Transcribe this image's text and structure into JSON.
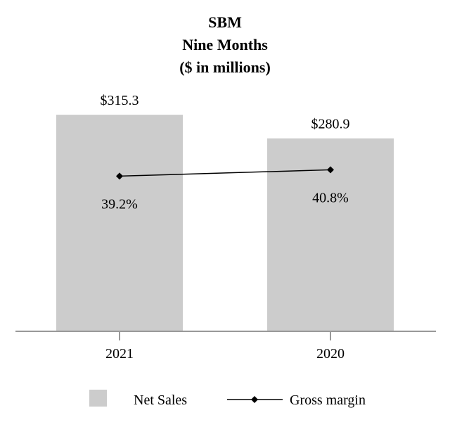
{
  "chart_data": {
    "type": "bar",
    "title": [
      "SBM",
      "Nine Months",
      "($ in millions)"
    ],
    "categories": [
      "2021",
      "2020"
    ],
    "series": [
      {
        "name": "Net Sales",
        "kind": "bar",
        "values": [
          315.3,
          280.9
        ],
        "labels": [
          "$315.3",
          "$280.9"
        ],
        "color": "#cccccc"
      },
      {
        "name": "Gross margin",
        "kind": "line",
        "values": [
          39.2,
          40.8
        ],
        "labels": [
          "39.2%",
          "40.8%"
        ],
        "color": "#000000"
      }
    ],
    "ylim": [
      0,
      340
    ],
    "margin_lim": [
      0,
      59
    ],
    "legend": [
      "Net Sales",
      "Gross margin"
    ],
    "legend_position": "bottom",
    "grid": false
  }
}
